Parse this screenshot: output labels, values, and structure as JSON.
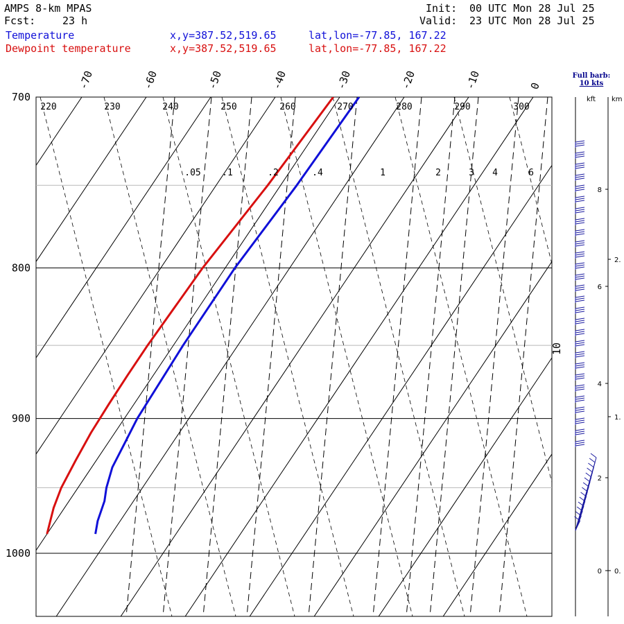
{
  "header": {
    "model": "AMPS 8-km MPAS",
    "fcst_label": "Fcst:",
    "fcst_value": "23 h",
    "init_label": "Init:",
    "init_value": "00 UTC Mon 28 Jul 25",
    "valid_label": "Valid:",
    "valid_value": "23 UTC Mon 28 Jul 25"
  },
  "legend": [
    {
      "name": "Temperature",
      "xy": "x,y=387.52,519.65",
      "latlon": "lat,lon=-77.85, 167.22",
      "color": "#1010d8"
    },
    {
      "name": "Dewpoint temperature",
      "xy": "x,y=387.52,519.65",
      "latlon": "lat,lon=-77.85, 167.22",
      "color": "#d81010"
    }
  ],
  "barb_note": {
    "line1": "Full barb:",
    "line2": "10 kts"
  },
  "chart_data": {
    "type": "line",
    "subtype": "skew-t log-p",
    "y_axis": {
      "scale": "log-pressure",
      "unit": "hPa",
      "range": [
        1045,
        700
      ],
      "ticks": [
        700,
        800,
        900,
        1000
      ]
    },
    "x_axis": {
      "unit": "°C",
      "range_at_700": [
        -77,
        4
      ],
      "skew": "isotherms slant right with height"
    },
    "isotherm_labels": [
      "-70",
      "-60",
      "-50",
      "-40",
      "-30",
      "-20",
      "-10",
      "0",
      "10"
    ],
    "dry_adiabat_labels": [
      "220",
      "230",
      "240",
      "250",
      "260",
      "270",
      "280",
      "290",
      "300"
    ],
    "mixing_ratio_labels": [
      ".05",
      ".1",
      ".2",
      ".4",
      "1",
      "2",
      "3",
      "4",
      "6"
    ],
    "grid_lines_hPa": [
      750,
      850,
      950
    ],
    "series": [
      {
        "name": "Temperature",
        "color": "#1010d8",
        "points": [
          {
            "p": 700,
            "t": -27.0
          },
          {
            "p": 750,
            "t": -27.5
          },
          {
            "p": 800,
            "t": -28.5
          },
          {
            "p": 850,
            "t": -28.5
          },
          {
            "p": 900,
            "t": -28.0
          },
          {
            "p": 920,
            "t": -27.3
          },
          {
            "p": 935,
            "t": -26.8
          },
          {
            "p": 950,
            "t": -25.6
          },
          {
            "p": 960,
            "t": -24.5
          },
          {
            "p": 975,
            "t": -23.5
          },
          {
            "p": 985,
            "t": -22.5
          }
        ]
      },
      {
        "name": "Dewpoint temperature",
        "color": "#d81010",
        "points": [
          {
            "p": 700,
            "t": -31.0
          },
          {
            "p": 750,
            "t": -32.0
          },
          {
            "p": 800,
            "t": -33.5
          },
          {
            "p": 850,
            "t": -34.0
          },
          {
            "p": 870,
            "t": -34.0
          },
          {
            "p": 890,
            "t": -33.9
          },
          {
            "p": 910,
            "t": -33.7
          },
          {
            "p": 930,
            "t": -33.2
          },
          {
            "p": 950,
            "t": -32.6
          },
          {
            "p": 965,
            "t": -31.7
          },
          {
            "p": 985,
            "t": -30.0
          }
        ]
      }
    ],
    "height_axis": {
      "kft_labels": [
        "8",
        "6",
        "4",
        "2",
        "0"
      ],
      "km_labels": [
        "2.",
        "1.",
        "0."
      ]
    }
  }
}
